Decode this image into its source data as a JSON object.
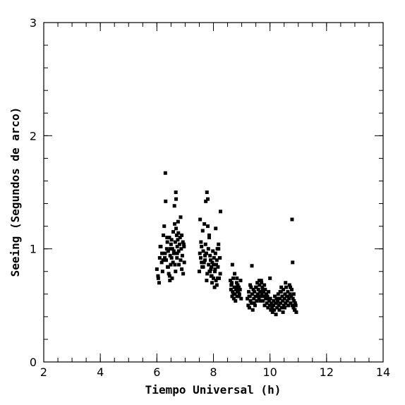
{
  "chart_data": {
    "type": "scatter",
    "title": "",
    "xlabel": "Tiempo Universal (h)",
    "ylabel": "Seeing (Segundos de arco)",
    "xlim": [
      2,
      14
    ],
    "ylim": [
      0,
      3
    ],
    "x_ticks": [
      2,
      4,
      6,
      8,
      10,
      12,
      14
    ],
    "y_ticks": [
      0,
      1,
      2,
      3
    ],
    "x_minor_step": 0.5,
    "y_minor_step": 0.2,
    "grid": false,
    "marker": "filled-square",
    "marker_color": "#000000",
    "series": [
      {
        "x": [
          6.0,
          6.04,
          6.08,
          6.1,
          6.14,
          6.17,
          6.2,
          6.23,
          6.26,
          6.29,
          6.3,
          6.31,
          6.33,
          6.35,
          6.37,
          6.38,
          6.4,
          6.42,
          6.44,
          6.46,
          6.47,
          6.49,
          6.5,
          6.52,
          6.54,
          6.55,
          6.57,
          6.58,
          6.6,
          6.62,
          6.63,
          6.65,
          6.66,
          6.67,
          6.68,
          6.7,
          6.71,
          6.72,
          6.74,
          6.75,
          6.77,
          6.78,
          6.8,
          6.82,
          6.84,
          6.86,
          6.88,
          6.9,
          6.93,
          6.95,
          6.97,
          6.36,
          6.4,
          6.68,
          6.72,
          6.88,
          6.05,
          6.12,
          6.22,
          6.45,
          6.6,
          6.76,
          6.92,
          6.28,
          6.52,
          6.84,
          6.18,
          6.48,
          6.64,
          6.96,
          7.5,
          7.53,
          7.55,
          7.58,
          7.6,
          7.62,
          7.64,
          7.66,
          7.68,
          7.7,
          7.72,
          7.73,
          7.75,
          7.77,
          7.78,
          7.8,
          7.82,
          7.83,
          7.85,
          7.86,
          7.88,
          7.9,
          7.92,
          7.93,
          7.95,
          7.96,
          7.98,
          8.0,
          8.02,
          8.04,
          8.05,
          8.07,
          8.09,
          8.1,
          8.12,
          8.14,
          8.16,
          8.18,
          8.2,
          8.22,
          8.24,
          8.25,
          7.56,
          7.74,
          7.8,
          7.85,
          7.91,
          7.58,
          7.7,
          8.08,
          8.23,
          7.64,
          7.76,
          7.88,
          8.0,
          8.12,
          8.18,
          7.52,
          7.67,
          7.94,
          8.06,
          8.15,
          8.6,
          8.62,
          8.64,
          8.66,
          8.68,
          8.7,
          8.72,
          8.74,
          8.76,
          8.78,
          8.8,
          8.82,
          8.84,
          8.86,
          8.88,
          8.9,
          8.92,
          8.94,
          8.96,
          8.98,
          8.65,
          8.71,
          8.79,
          8.85,
          8.91,
          8.67,
          8.75,
          8.83,
          8.63,
          8.87,
          9.2,
          9.23,
          9.25,
          9.27,
          9.29,
          9.31,
          9.33,
          9.35,
          9.37,
          9.39,
          9.41,
          9.43,
          9.45,
          9.47,
          9.49,
          9.51,
          9.53,
          9.55,
          9.57,
          9.59,
          9.61,
          9.63,
          9.65,
          9.67,
          9.69,
          9.71,
          9.73,
          9.75,
          9.77,
          9.79,
          9.81,
          9.83,
          9.85,
          9.87,
          9.89,
          9.91,
          9.93,
          9.95,
          9.97,
          9.99,
          10.01,
          10.03,
          10.05,
          10.07,
          10.09,
          10.11,
          10.13,
          10.15,
          10.17,
          10.19,
          10.21,
          10.23,
          10.25,
          10.27,
          10.29,
          10.31,
          10.33,
          10.35,
          10.37,
          10.39,
          10.41,
          10.43,
          10.45,
          10.47,
          10.49,
          10.51,
          10.53,
          10.55,
          10.57,
          10.59,
          10.61,
          10.63,
          10.65,
          10.67,
          10.69,
          10.71,
          10.73,
          10.75,
          10.77,
          10.79,
          10.81,
          10.83,
          10.85,
          10.87,
          10.89,
          10.91,
          10.93,
          9.36,
          9.62,
          9.7,
          9.8,
          10.0,
          10.4,
          10.55,
          10.72,
          10.78,
          10.8,
          9.3,
          9.44,
          9.58,
          9.74,
          9.92,
          10.08,
          10.24,
          10.36,
          10.52,
          10.64,
          10.84,
          9.26,
          9.5,
          9.66,
          9.86,
          10.12,
          10.3,
          10.46,
          10.62,
          10.88
        ],
        "y": [
          0.82,
          0.76,
          0.7,
          0.92,
          1.02,
          0.88,
          0.8,
          1.12,
          1.2,
          0.96,
          1.67,
          1.42,
          0.9,
          1.0,
          1.06,
          0.84,
          0.98,
          0.78,
          1.1,
          0.72,
          0.94,
          0.86,
          1.04,
          0.92,
          0.74,
          1.0,
          0.88,
          1.15,
          0.96,
          1.38,
          1.22,
          1.06,
          0.8,
          1.5,
          1.44,
          1.12,
          0.92,
          1.02,
          1.08,
          1.24,
          0.98,
          0.86,
          1.04,
          1.1,
          1.28,
          1.0,
          1.12,
          0.94,
          0.78,
          1.04,
          0.88,
          1.1,
          0.84,
          1.18,
          0.96,
          0.82,
          0.74,
          1.02,
          0.9,
          0.76,
          0.98,
          1.14,
          1.06,
          0.92,
          1.08,
          0.9,
          0.96,
          1.0,
          0.86,
          1.02,
          0.8,
          1.26,
          0.92,
          1.02,
          0.84,
          1.16,
          0.98,
          0.88,
          1.22,
          0.9,
          1.04,
          1.42,
          0.96,
          1.5,
          0.78,
          1.44,
          1.0,
          0.86,
          1.12,
          0.8,
          0.94,
          0.9,
          0.76,
          0.84,
          0.7,
          0.88,
          0.98,
          0.74,
          0.92,
          0.66,
          0.8,
          0.96,
          0.72,
          0.86,
          0.68,
          1.0,
          0.84,
          1.04,
          0.74,
          0.92,
          0.78,
          1.33,
          1.06,
          0.96,
          1.2,
          1.1,
          0.82,
          0.88,
          0.94,
          1.18,
          0.92,
          0.84,
          0.72,
          0.8,
          0.86,
          0.9,
          1.0,
          0.96,
          0.88,
          0.76,
          0.82,
          0.74,
          0.72,
          0.64,
          0.68,
          0.58,
          0.62,
          0.74,
          0.56,
          0.66,
          0.6,
          0.54,
          0.64,
          0.7,
          0.58,
          0.68,
          0.62,
          0.66,
          0.6,
          0.64,
          0.72,
          0.56,
          0.7,
          0.6,
          0.66,
          0.62,
          0.58,
          0.86,
          0.78,
          0.74,
          0.68,
          0.64,
          0.56,
          0.5,
          0.62,
          0.48,
          0.58,
          0.54,
          0.66,
          0.52,
          0.6,
          0.46,
          0.64,
          0.56,
          0.62,
          0.5,
          0.58,
          0.66,
          0.54,
          0.7,
          0.6,
          0.64,
          0.56,
          0.68,
          0.62,
          0.58,
          0.72,
          0.6,
          0.66,
          0.54,
          0.62,
          0.58,
          0.5,
          0.64,
          0.56,
          0.6,
          0.52,
          0.58,
          0.48,
          0.62,
          0.54,
          0.5,
          0.56,
          0.46,
          0.52,
          0.48,
          0.44,
          0.5,
          0.54,
          0.46,
          0.58,
          0.52,
          0.42,
          0.56,
          0.48,
          0.54,
          0.6,
          0.5,
          0.46,
          0.56,
          0.52,
          0.62,
          0.48,
          0.58,
          0.54,
          0.64,
          0.5,
          0.56,
          0.6,
          0.52,
          0.66,
          0.58,
          0.54,
          0.62,
          0.5,
          0.56,
          0.68,
          0.6,
          0.52,
          0.58,
          0.64,
          0.5,
          0.56,
          0.48,
          0.54,
          0.46,
          0.52,
          0.5,
          0.44,
          0.85,
          0.72,
          0.7,
          0.68,
          0.74,
          0.66,
          0.7,
          0.66,
          1.26,
          0.88,
          0.68,
          0.52,
          0.58,
          0.64,
          0.56,
          0.46,
          0.52,
          0.62,
          0.48,
          0.5,
          0.6,
          0.58,
          0.66,
          0.54,
          0.6,
          0.5,
          0.56,
          0.44,
          0.58,
          0.46
        ]
      }
    ]
  }
}
